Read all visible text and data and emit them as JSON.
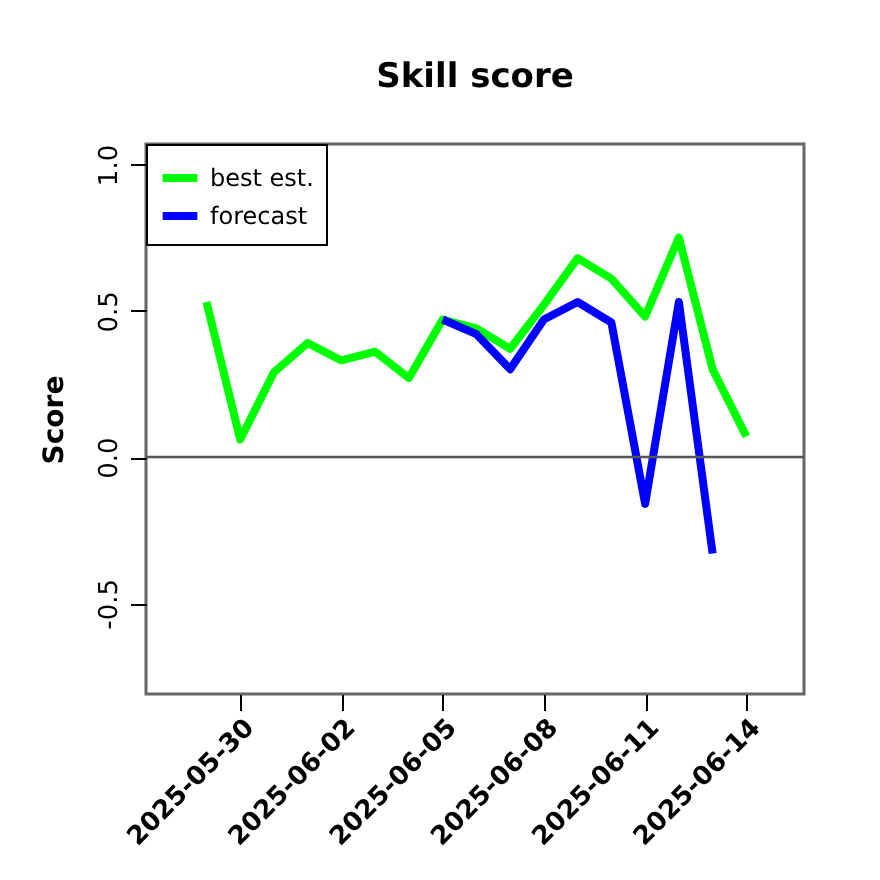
{
  "chart_data": {
    "type": "line",
    "title": "Skill score",
    "ylabel": "Score",
    "x": [
      "2025-05-29",
      "2025-05-30",
      "2025-05-31",
      "2025-06-01",
      "2025-06-02",
      "2025-06-03",
      "2025-06-04",
      "2025-06-05",
      "2025-06-06",
      "2025-06-07",
      "2025-06-08",
      "2025-06-09",
      "2025-06-10",
      "2025-06-11",
      "2025-06-12",
      "2025-06-13",
      "2025-06-14"
    ],
    "series": [
      {
        "name": "best est.",
        "color": "#00ff00",
        "values": [
          0.53,
          0.06,
          0.29,
          0.39,
          0.33,
          0.36,
          0.27,
          0.47,
          0.44,
          0.37,
          0.52,
          0.68,
          0.61,
          0.48,
          0.75,
          0.3,
          0.07
        ]
      },
      {
        "name": "forecast",
        "color": "#0000ff",
        "values": [
          null,
          null,
          null,
          null,
          null,
          null,
          null,
          0.47,
          0.42,
          0.3,
          0.47,
          0.53,
          0.46,
          -0.16,
          0.53,
          -0.33,
          null
        ]
      }
    ],
    "xlim": [
      "2025-05-27T05:00",
      "2025-06-15T17:00"
    ],
    "xticks": [
      "2025-05-30",
      "2025-06-02",
      "2025-06-05",
      "2025-06-08",
      "2025-06-11",
      "2025-06-14"
    ],
    "ylim": [
      -0.81,
      1.07
    ],
    "yticks": [
      {
        "value": -0.5,
        "label": "-0.5"
      },
      {
        "value": 0,
        "label": "0.0"
      },
      {
        "value": 0.5,
        "label": "0.5"
      },
      {
        "value": 1,
        "label": "1.0"
      }
    ],
    "ref_lines": [
      {
        "axis": "y",
        "value": 0,
        "color": "#555555"
      }
    ],
    "legend": "top left",
    "grid": false,
    "line_style": "solid",
    "marker": "none"
  }
}
